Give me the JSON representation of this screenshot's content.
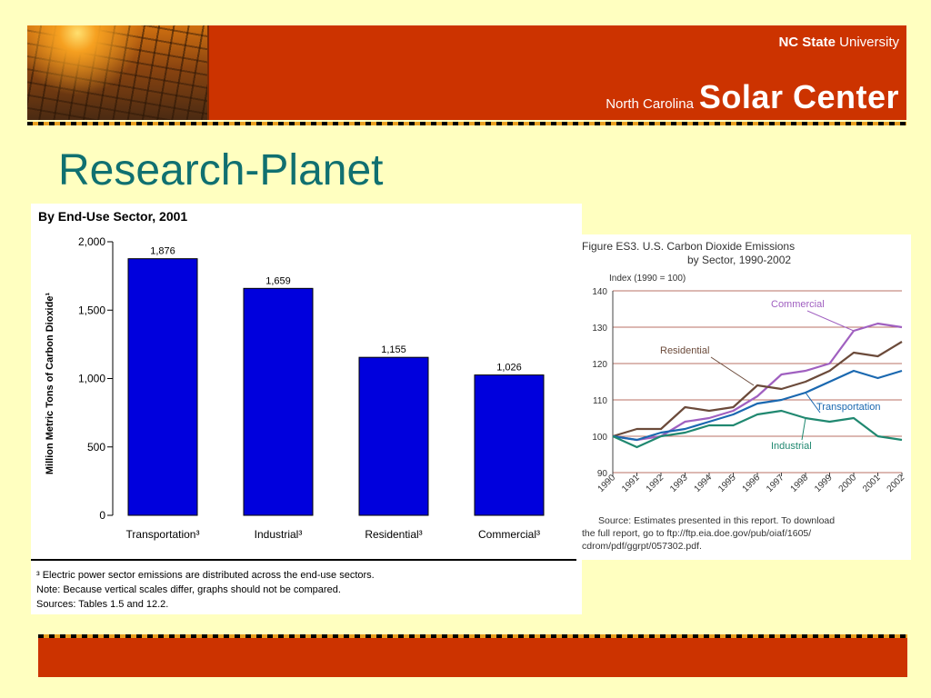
{
  "header": {
    "univ_bold": "NC State",
    "univ_rest": " University",
    "center_small": "North Carolina",
    "center_big": "Solar Center"
  },
  "slide_title": "Research-Planet",
  "chart_data": [
    {
      "type": "bar",
      "title": "By End-Use Sector, 2001",
      "ylabel": "Million Metric Tons of Carbon Dioxide¹",
      "xlabel": "",
      "categories": [
        "Transportation³",
        "Industrial³",
        "Residential³",
        "Commercial³"
      ],
      "values": [
        1876,
        1659,
        1155,
        1026
      ],
      "value_labels": [
        "1,876",
        "1,659",
        "1,155",
        "1,026"
      ],
      "ylim": [
        0,
        2000
      ],
      "yticks": [
        0,
        500,
        1000,
        1500,
        2000
      ],
      "ytick_labels": [
        "0",
        "500",
        "1,000",
        "1,500",
        "2,000"
      ],
      "bar_color": "#0000dd",
      "notes": [
        "³ Electric power sector emissions are distributed across the end-use sectors.",
        "Note:  Because vertical scales differ, graphs should not be compared.",
        "Sources:  Tables 1.5 and 12.2."
      ]
    },
    {
      "type": "line",
      "title": "Figure ES3.  U.S. Carbon Dioxide Emissions",
      "subtitle": "by Sector, 1990-2002",
      "ylabel": "Index (1990 = 100)",
      "xlabel": "",
      "x": [
        "1990",
        "1991",
        "1992",
        "1993",
        "1994",
        "1995",
        "1996",
        "1997",
        "1998",
        "1999",
        "2000",
        "2001",
        "2002"
      ],
      "ylim": [
        90,
        140
      ],
      "yticks": [
        90,
        100,
        110,
        120,
        130,
        140
      ],
      "grid": true,
      "series": [
        {
          "name": "Commercial",
          "color": "#a060c0",
          "values": [
            100,
            99,
            100,
            104,
            105,
            107,
            111,
            117,
            118,
            120,
            129,
            131,
            130
          ]
        },
        {
          "name": "Residential",
          "color": "#6b4a3a",
          "values": [
            100,
            102,
            102,
            108,
            107,
            108,
            114,
            113,
            115,
            118,
            123,
            122,
            126
          ]
        },
        {
          "name": "Transportation",
          "color": "#1a68b0",
          "values": [
            100,
            99,
            101,
            102,
            104,
            106,
            109,
            110,
            112,
            115,
            118,
            116,
            118
          ]
        },
        {
          "name": "Industrial",
          "color": "#208870",
          "values": [
            100,
            97,
            100,
            101,
            103,
            103,
            106,
            107,
            105,
            104,
            105,
            100,
            99
          ]
        }
      ],
      "source": [
        "Source: Estimates presented in this report. To download",
        "the  full  report,  go  to  ftp://ftp.eia.doe.gov/pub/oiaf/1605/",
        "cdrom/pdf/ggrpt/057302.pdf."
      ]
    }
  ]
}
